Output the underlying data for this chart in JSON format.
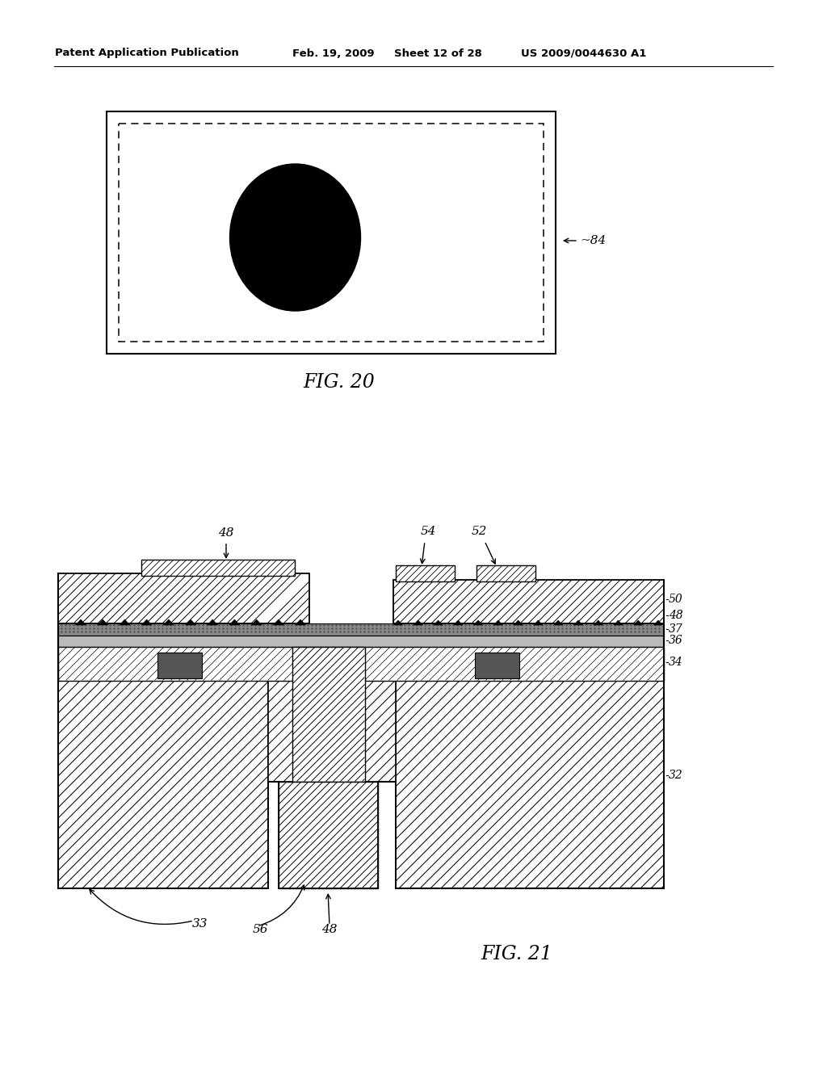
{
  "bg_color": "#ffffff",
  "header_left": "Patent Application Publication",
  "header_date": "Feb. 19, 2009",
  "header_sheet": "Sheet 12 of 28",
  "header_patent": "US 2009/0044630 A1",
  "fig20_caption": "FIG. 20",
  "fig21_caption": "FIG. 21",
  "label_84": "84",
  "label_48a": "48",
  "label_54": "54",
  "label_52": "52",
  "label_50": "50",
  "label_48b": "48",
  "label_37": "37",
  "label_36": "36",
  "label_34": "34",
  "label_32": "32",
  "label_33": "33",
  "label_56": "56",
  "label_48c": "48"
}
